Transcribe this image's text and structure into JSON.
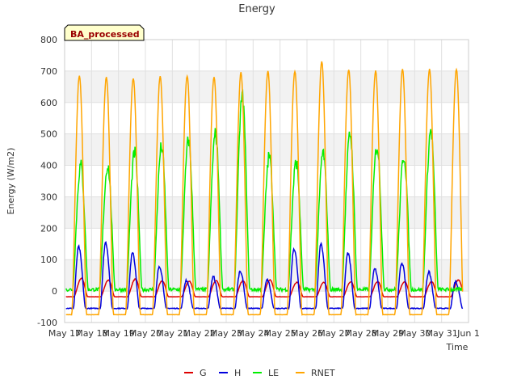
{
  "chart_data": {
    "type": "line",
    "title": "Energy",
    "xlabel": "Time",
    "ylabel": "Energy (W/m2)",
    "badge": "BA_processed",
    "ylim": [
      -100,
      800
    ],
    "yticks": [
      -100,
      0,
      100,
      200,
      300,
      400,
      500,
      600,
      700,
      800
    ],
    "xlim": [
      "2024-05-17",
      "2024-06-01"
    ],
    "xtick_labels": [
      "May 17",
      "May 18",
      "May 19",
      "May 20",
      "May 21",
      "May 22",
      "May 23",
      "May 24",
      "May 25",
      "May 26",
      "May 27",
      "May 28",
      "May 29",
      "May 30",
      "May 31",
      "Jun 1"
    ],
    "grid": true,
    "band_shading": true,
    "legend_position": "bottom-center",
    "days": [
      "May 17",
      "May 18",
      "May 19",
      "May 20",
      "May 21",
      "May 22",
      "May 23",
      "May 24",
      "May 25",
      "May 26",
      "May 27",
      "May 28",
      "May 29",
      "May 30",
      "May 31"
    ],
    "series": [
      {
        "name": "G",
        "color": "#dd0000",
        "daily_peak": [
          40,
          35,
          38,
          32,
          32,
          33,
          33,
          35,
          28,
          27,
          30,
          30,
          30,
          30,
          35
        ],
        "night_level": -18
      },
      {
        "name": "H",
        "color": "#0000dd",
        "daily_peak": [
          140,
          155,
          120,
          80,
          35,
          45,
          65,
          35,
          135,
          150,
          120,
          70,
          90,
          60,
          30
        ],
        "night_level": -55
      },
      {
        "name": "LE",
        "color": "#00ee00",
        "daily_peak": [
          400,
          400,
          440,
          460,
          480,
          500,
          620,
          430,
          410,
          440,
          500,
          460,
          430,
          510,
          0
        ],
        "night_level": 5
      },
      {
        "name": "RNET",
        "color": "#ffa500",
        "daily_peak": [
          685,
          680,
          678,
          683,
          685,
          680,
          695,
          700,
          700,
          730,
          705,
          700,
          708,
          705,
          705
        ],
        "night_level": -75
      }
    ]
  }
}
